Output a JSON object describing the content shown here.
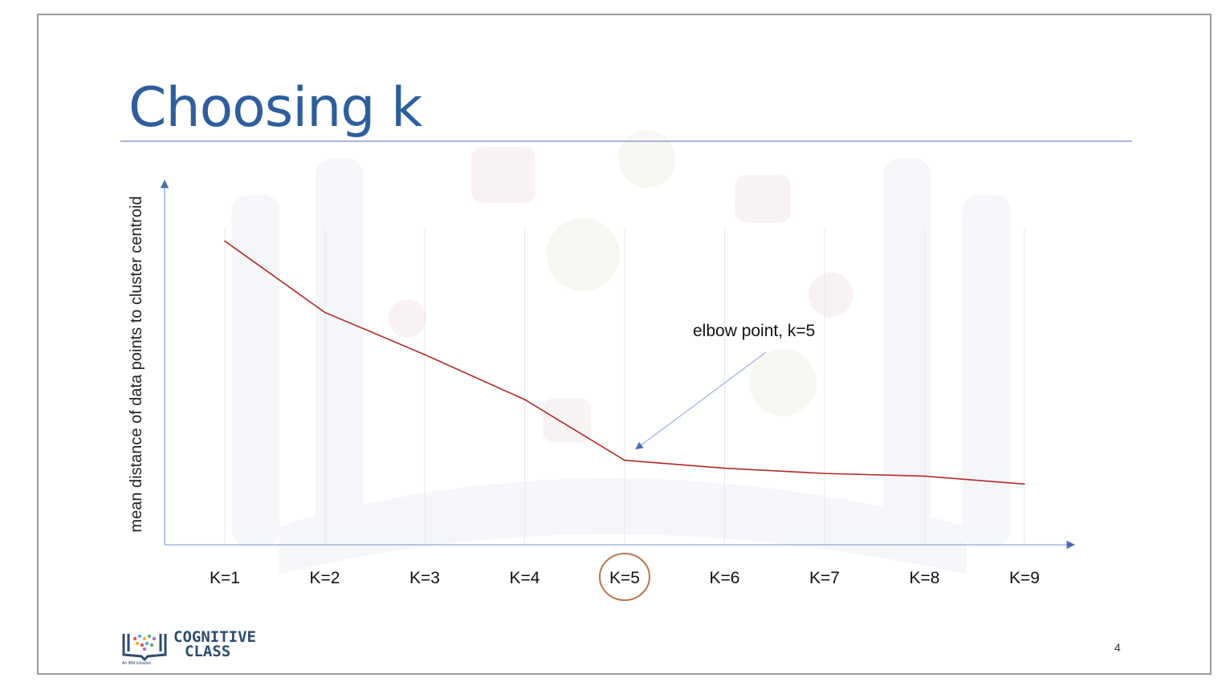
{
  "slide": {
    "title": "Choosing k",
    "page_number": "4",
    "logo": {
      "line1": "COGNITIVE",
      "line2": "CLASS",
      "tagline": "An IBM Initiative"
    }
  },
  "chart_data": {
    "type": "line",
    "title": "",
    "xlabel": "",
    "ylabel": "mean distance of data points to cluster centroid",
    "categories": [
      "K=1",
      "K=2",
      "K=3",
      "K=4",
      "K=5",
      "K=6",
      "K=7",
      "K=8",
      "K=9"
    ],
    "values": [
      1.0,
      0.73,
      0.57,
      0.4,
      0.17,
      0.14,
      0.12,
      0.11,
      0.08
    ],
    "ylim": [
      -0.15,
      1.05
    ],
    "y_ticks_shown": false,
    "grid": "vertical",
    "line_color": "#b02a2a",
    "highlight_category": "K=5",
    "highlight_color": "#b5764a",
    "annotation": {
      "text": "elbow point, k=5",
      "target": "K=5"
    }
  }
}
